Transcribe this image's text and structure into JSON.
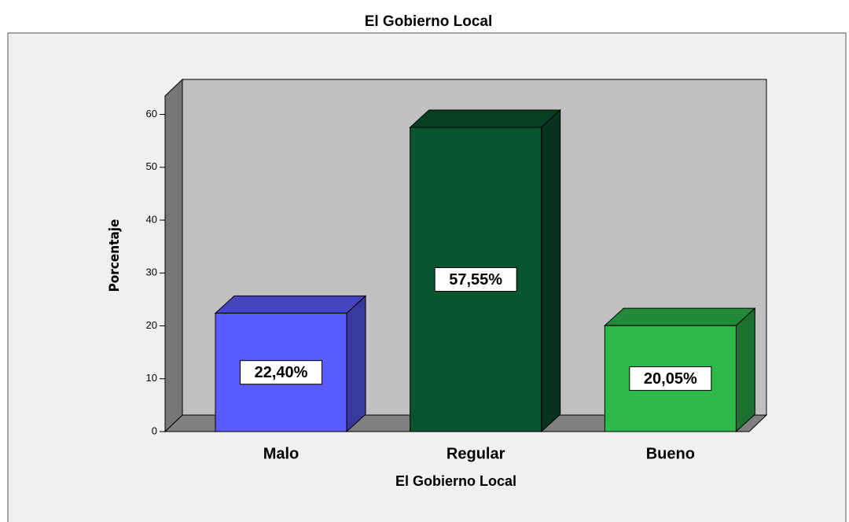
{
  "chart_data": {
    "type": "bar3d",
    "title": "El Gobierno Local",
    "categories": [
      "Malo",
      "Regular",
      "Bueno"
    ],
    "values": [
      22.4,
      57.55,
      20.05
    ],
    "value_labels": [
      "22,40%",
      "57,55%",
      "20,05%"
    ],
    "colors": [
      "#5a5cff",
      "#0b5430",
      "#2db84a"
    ],
    "xlabel": "El Gobierno Local",
    "ylabel": "Porcentaje",
    "ylim": [
      0,
      63.5
    ],
    "yticks": [
      0,
      10,
      20,
      30,
      40,
      50,
      60
    ]
  }
}
